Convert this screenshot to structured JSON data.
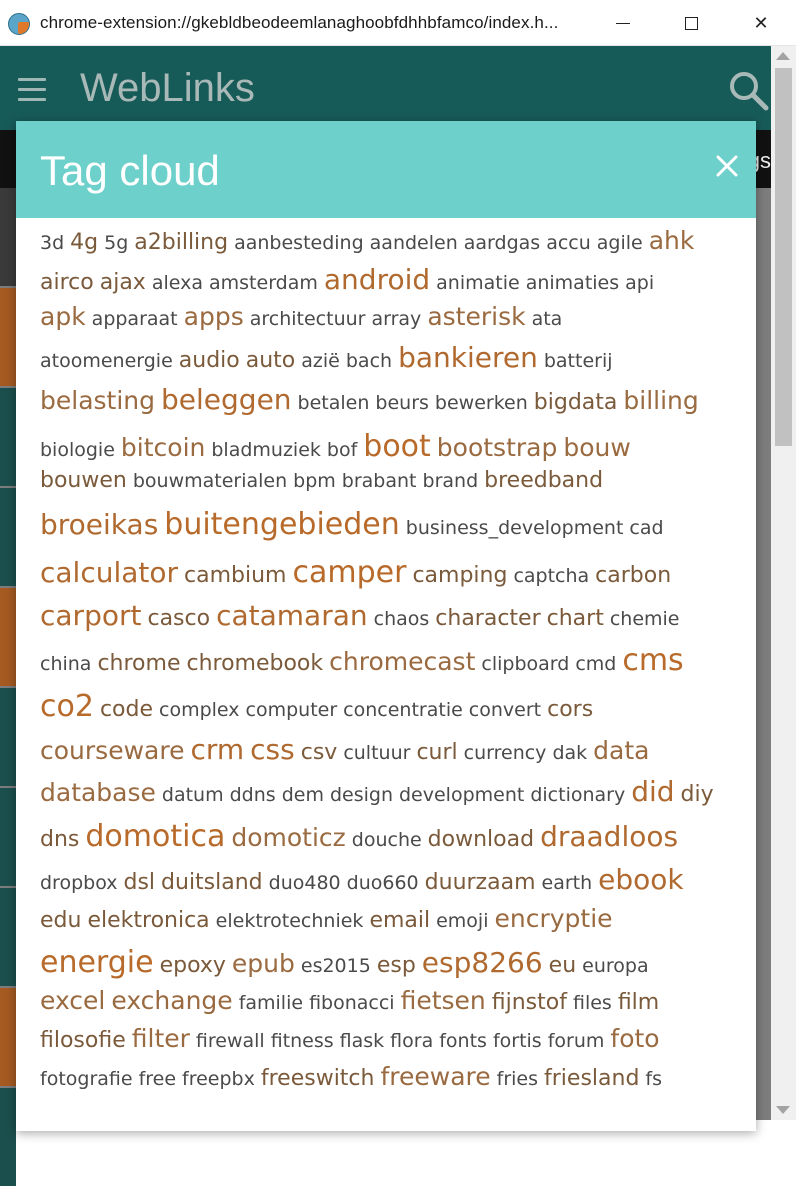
{
  "window": {
    "title": "chrome-extension://gkebldbeodeemlanaghoobfdhhbfamco/index.h...",
    "close_glyph": "✕"
  },
  "app": {
    "title": "WebLinks",
    "menu_icon": "hamburger-icon",
    "search_icon": "search-icon",
    "bg_label": "gs"
  },
  "dialog": {
    "title": "Tag cloud",
    "close_glyph": "✕",
    "header_color": "#6dd0cb"
  },
  "colors": {
    "appbar": "#175b58",
    "accent_strip_orange": "#c0621c",
    "accent_strip_teal": "#175b58"
  },
  "tag_lines": [
    [
      {
        "t": "3d",
        "s": 1
      },
      {
        "t": "4g",
        "s": 2
      },
      {
        "t": "5g",
        "s": 1
      },
      {
        "t": "a2billing",
        "s": 2
      },
      {
        "t": "aanbesteding",
        "s": 1
      },
      {
        "t": "aandelen",
        "s": 1
      },
      {
        "t": "aardgas",
        "s": 1
      },
      {
        "t": "accu",
        "s": 1
      },
      {
        "t": "agile",
        "s": 1
      },
      {
        "t": "ahk",
        "s": 3
      }
    ],
    [
      {
        "t": "airco",
        "s": 2
      },
      {
        "t": "ajax",
        "s": 2
      },
      {
        "t": "alexa",
        "s": 1
      },
      {
        "t": "amsterdam",
        "s": 1
      },
      {
        "t": "android",
        "s": 4
      },
      {
        "t": "animatie",
        "s": 1
      },
      {
        "t": "animaties",
        "s": 1
      },
      {
        "t": "api",
        "s": 1
      }
    ],
    [
      {
        "t": "apk",
        "s": 3
      },
      {
        "t": "apparaat",
        "s": 1
      },
      {
        "t": "apps",
        "s": 3
      },
      {
        "t": "architectuur",
        "s": 1
      },
      {
        "t": "array",
        "s": 1
      },
      {
        "t": "asterisk",
        "s": 3
      },
      {
        "t": "ata",
        "s": 1
      }
    ],
    [
      {
        "t": "atoomenergie",
        "s": 1
      },
      {
        "t": "audio",
        "s": 2
      },
      {
        "t": "auto",
        "s": 2
      },
      {
        "t": "azië",
        "s": 1
      },
      {
        "t": "bach",
        "s": 1
      },
      {
        "t": "bankieren",
        "s": 4
      },
      {
        "t": "batterij",
        "s": 1
      }
    ],
    [
      {
        "t": "belasting",
        "s": 3
      },
      {
        "t": "beleggen",
        "s": 4
      },
      {
        "t": "betalen",
        "s": 1
      },
      {
        "t": "beurs",
        "s": 1
      },
      {
        "t": "bewerken",
        "s": 1
      },
      {
        "t": "bigdata",
        "s": 2
      },
      {
        "t": "billing",
        "s": 3
      }
    ],
    [
      {
        "t": "biologie",
        "s": 1
      },
      {
        "t": "bitcoin",
        "s": 3
      },
      {
        "t": "bladmuziek",
        "s": 1
      },
      {
        "t": "bof",
        "s": 1
      },
      {
        "t": "boot",
        "s": 5
      },
      {
        "t": "bootstrap",
        "s": 3
      },
      {
        "t": "bouw",
        "s": 3
      }
    ],
    [
      {
        "t": "bouwen",
        "s": 2
      },
      {
        "t": "bouwmaterialen",
        "s": 1
      },
      {
        "t": "bpm",
        "s": 1
      },
      {
        "t": "brabant",
        "s": 1
      },
      {
        "t": "brand",
        "s": 1
      },
      {
        "t": "breedband",
        "s": 2
      }
    ],
    [
      {
        "t": "broeikas",
        "s": 4
      },
      {
        "t": "buitengebieden",
        "s": 5
      },
      {
        "t": "business_development",
        "s": 1
      },
      {
        "t": "cad",
        "s": 1
      }
    ],
    [
      {
        "t": "calculator",
        "s": 4
      },
      {
        "t": "cambium",
        "s": 2
      },
      {
        "t": "camper",
        "s": 5
      },
      {
        "t": "camping",
        "s": 2
      },
      {
        "t": "captcha",
        "s": 1
      },
      {
        "t": "carbon",
        "s": 2
      }
    ],
    [
      {
        "t": "carport",
        "s": 4
      },
      {
        "t": "casco",
        "s": 2
      },
      {
        "t": "catamaran",
        "s": 4
      },
      {
        "t": "chaos",
        "s": 1
      },
      {
        "t": "character",
        "s": 2
      },
      {
        "t": "chart",
        "s": 2
      },
      {
        "t": "chemie",
        "s": 1
      }
    ],
    [
      {
        "t": "china",
        "s": 1
      },
      {
        "t": "chrome",
        "s": 2
      },
      {
        "t": "chromebook",
        "s": 2
      },
      {
        "t": "chromecast",
        "s": 3
      },
      {
        "t": "clipboard",
        "s": 1
      },
      {
        "t": "cmd",
        "s": 1
      },
      {
        "t": "cms",
        "s": 5
      }
    ],
    [
      {
        "t": "co2",
        "s": 5
      },
      {
        "t": "code",
        "s": 2
      },
      {
        "t": "complex",
        "s": 1
      },
      {
        "t": "computer",
        "s": 1
      },
      {
        "t": "concentratie",
        "s": 1
      },
      {
        "t": "convert",
        "s": 1
      },
      {
        "t": "cors",
        "s": 2
      }
    ],
    [
      {
        "t": "courseware",
        "s": 3
      },
      {
        "t": "crm",
        "s": 4
      },
      {
        "t": "css",
        "s": 4
      },
      {
        "t": "csv",
        "s": 2
      },
      {
        "t": "cultuur",
        "s": 1
      },
      {
        "t": "curl",
        "s": 2
      },
      {
        "t": "currency",
        "s": 1
      },
      {
        "t": "dak",
        "s": 1
      },
      {
        "t": "data",
        "s": 3
      }
    ],
    [
      {
        "t": "database",
        "s": 3
      },
      {
        "t": "datum",
        "s": 1
      },
      {
        "t": "ddns",
        "s": 1
      },
      {
        "t": "dem",
        "s": 1
      },
      {
        "t": "design",
        "s": 1
      },
      {
        "t": "development",
        "s": 1
      },
      {
        "t": "dictionary",
        "s": 1
      },
      {
        "t": "did",
        "s": 4
      },
      {
        "t": "diy",
        "s": 2
      }
    ],
    [
      {
        "t": "dns",
        "s": 2
      },
      {
        "t": "domotica",
        "s": 5
      },
      {
        "t": "domoticz",
        "s": 3
      },
      {
        "t": "douche",
        "s": 1
      },
      {
        "t": "download",
        "s": 2
      },
      {
        "t": "draadloos",
        "s": 4
      }
    ],
    [
      {
        "t": "dropbox",
        "s": 1
      },
      {
        "t": "dsl",
        "s": 2
      },
      {
        "t": "duitsland",
        "s": 2
      },
      {
        "t": "duo480",
        "s": 1
      },
      {
        "t": "duo660",
        "s": 1
      },
      {
        "t": "duurzaam",
        "s": 2
      },
      {
        "t": "earth",
        "s": 1
      },
      {
        "t": "ebook",
        "s": 4
      }
    ],
    [
      {
        "t": "edu",
        "s": 2
      },
      {
        "t": "elektronica",
        "s": 2
      },
      {
        "t": "elektrotechniek",
        "s": 1
      },
      {
        "t": "email",
        "s": 2
      },
      {
        "t": "emoji",
        "s": 1
      },
      {
        "t": "encryptie",
        "s": 3
      }
    ],
    [
      {
        "t": "energie",
        "s": 5
      },
      {
        "t": "epoxy",
        "s": 2
      },
      {
        "t": "epub",
        "s": 3
      },
      {
        "t": "es2015",
        "s": 1
      },
      {
        "t": "esp",
        "s": 2
      },
      {
        "t": "esp8266",
        "s": 4
      },
      {
        "t": "eu",
        "s": 2
      },
      {
        "t": "europa",
        "s": 1
      }
    ],
    [
      {
        "t": "excel",
        "s": 3
      },
      {
        "t": "exchange",
        "s": 3
      },
      {
        "t": "familie",
        "s": 1
      },
      {
        "t": "fibonacci",
        "s": 1
      },
      {
        "t": "fietsen",
        "s": 3
      },
      {
        "t": "fijnstof",
        "s": 2
      },
      {
        "t": "files",
        "s": 1
      },
      {
        "t": "film",
        "s": 2
      }
    ],
    [
      {
        "t": "filosofie",
        "s": 2
      },
      {
        "t": "filter",
        "s": 3
      },
      {
        "t": "firewall",
        "s": 1
      },
      {
        "t": "fitness",
        "s": 1
      },
      {
        "t": "flask",
        "s": 1
      },
      {
        "t": "flora",
        "s": 1
      },
      {
        "t": "fonts",
        "s": 1
      },
      {
        "t": "fortis",
        "s": 1
      },
      {
        "t": "forum",
        "s": 1
      },
      {
        "t": "foto",
        "s": 3
      }
    ],
    [
      {
        "t": "fotografie",
        "s": 1
      },
      {
        "t": "free",
        "s": 1
      },
      {
        "t": "freepbx",
        "s": 1
      },
      {
        "t": "freeswitch",
        "s": 2
      },
      {
        "t": "freeware",
        "s": 3
      },
      {
        "t": "fries",
        "s": 1
      },
      {
        "t": "friesland",
        "s": 2
      },
      {
        "t": "fs",
        "s": 1
      }
    ]
  ]
}
